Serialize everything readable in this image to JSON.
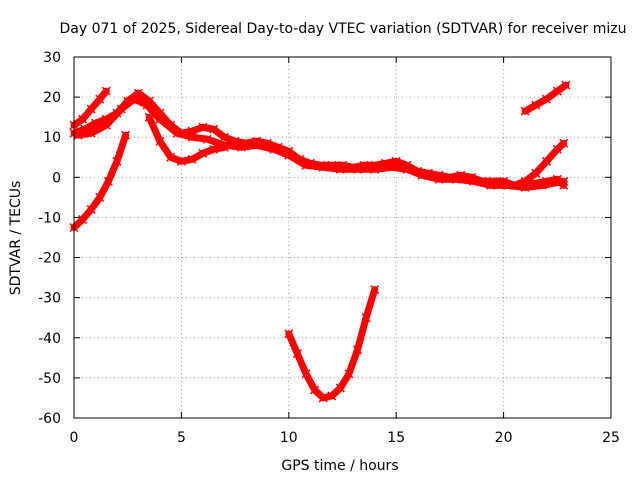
{
  "chart_data": {
    "type": "scatter",
    "title": "Day 071 of 2025, Sidereal Day-to-day VTEC variation (SDTVAR) for receiver mizu",
    "xlabel": "GPS time / hours",
    "ylabel": "SDTVAR / TECUs",
    "xlim": [
      0,
      25
    ],
    "ylim": [
      -60,
      30
    ],
    "xticks": [
      0,
      5,
      10,
      15,
      20,
      25
    ],
    "yticks": [
      -60,
      -50,
      -40,
      -30,
      -20,
      -10,
      0,
      10,
      20,
      30
    ],
    "grid": true,
    "series_color": "#ff0000",
    "grid_color": "#a0a0a0",
    "series": [
      {
        "name": "early-rise-arc",
        "points": [
          [
            0.0,
            -12.5
          ],
          [
            0.4,
            -10.5
          ],
          [
            0.8,
            -8
          ],
          [
            1.2,
            -5
          ],
          [
            1.6,
            -1
          ],
          [
            2.0,
            4
          ],
          [
            2.4,
            10.5
          ]
        ]
      },
      {
        "name": "early-short-arc",
        "points": [
          [
            0.0,
            13
          ],
          [
            0.4,
            14.5
          ],
          [
            0.8,
            17
          ],
          [
            1.2,
            19.5
          ],
          [
            1.5,
            21.5
          ]
        ]
      },
      {
        "name": "main-band-upper",
        "points": [
          [
            0.0,
            11
          ],
          [
            0.5,
            12
          ],
          [
            1.0,
            13.5
          ],
          [
            1.5,
            14.5
          ],
          [
            2.0,
            16
          ],
          [
            2.5,
            19
          ],
          [
            3.0,
            21
          ],
          [
            3.5,
            19
          ],
          [
            4.0,
            16
          ],
          [
            4.5,
            13
          ],
          [
            5.0,
            11
          ],
          [
            5.5,
            11.5
          ],
          [
            6.0,
            12.5
          ],
          [
            6.5,
            12
          ],
          [
            7.0,
            10
          ],
          [
            7.5,
            9
          ],
          [
            8.0,
            8.5
          ],
          [
            8.5,
            9
          ],
          [
            9.0,
            8.5
          ],
          [
            9.5,
            7.5
          ],
          [
            10.0,
            6.5
          ],
          [
            10.5,
            4.5
          ],
          [
            11.0,
            3.5
          ],
          [
            11.5,
            3
          ],
          [
            12.0,
            3
          ],
          [
            12.5,
            3
          ],
          [
            13.0,
            2.5
          ],
          [
            13.5,
            3
          ],
          [
            14.0,
            3
          ],
          [
            14.5,
            3.5
          ],
          [
            15.0,
            4
          ],
          [
            15.5,
            3
          ],
          [
            16.0,
            1.5
          ],
          [
            16.5,
            1
          ],
          [
            17.0,
            0.5
          ],
          [
            17.5,
            0
          ],
          [
            18.0,
            0.5
          ],
          [
            18.5,
            0
          ],
          [
            19.0,
            -1
          ],
          [
            19.5,
            -1
          ],
          [
            20.0,
            -1
          ],
          [
            20.5,
            -2
          ],
          [
            21.0,
            -2
          ],
          [
            21.5,
            -1.5
          ],
          [
            22.0,
            -1
          ],
          [
            22.5,
            -0.5
          ],
          [
            22.8,
            -2
          ]
        ]
      },
      {
        "name": "main-band-lower",
        "points": [
          [
            0.2,
            10.5
          ],
          [
            0.8,
            11
          ],
          [
            1.5,
            13
          ],
          [
            2.2,
            17
          ],
          [
            2.8,
            19.5
          ],
          [
            3.4,
            18
          ],
          [
            4.0,
            14.5
          ],
          [
            4.8,
            11
          ],
          [
            5.5,
            10
          ],
          [
            6.2,
            9.5
          ],
          [
            7.0,
            8
          ],
          [
            7.8,
            7.5
          ],
          [
            8.5,
            8
          ],
          [
            9.3,
            7
          ],
          [
            10.0,
            5.5
          ],
          [
            10.8,
            3
          ],
          [
            11.6,
            2.5
          ],
          [
            12.4,
            2
          ],
          [
            13.2,
            2
          ],
          [
            14.0,
            2
          ],
          [
            14.8,
            2.5
          ],
          [
            15.5,
            2
          ],
          [
            16.2,
            0.5
          ],
          [
            17.0,
            -0.5
          ],
          [
            17.8,
            -0.5
          ],
          [
            18.6,
            -1
          ],
          [
            19.4,
            -2
          ],
          [
            20.2,
            -2
          ],
          [
            21.0,
            -2.5
          ],
          [
            21.8,
            -2
          ],
          [
            22.8,
            -1
          ]
        ]
      },
      {
        "name": "dip-arc",
        "points": [
          [
            3.5,
            15
          ],
          [
            4.0,
            9
          ],
          [
            4.5,
            5
          ],
          [
            5.0,
            4
          ],
          [
            5.5,
            4.5
          ],
          [
            6.0,
            6
          ],
          [
            6.5,
            7
          ],
          [
            7.0,
            7.5
          ]
        ]
      },
      {
        "name": "negative-arc",
        "points": [
          [
            10.0,
            -39
          ],
          [
            10.4,
            -44
          ],
          [
            10.8,
            -49
          ],
          [
            11.2,
            -53
          ],
          [
            11.6,
            -55
          ],
          [
            12.0,
            -54.5
          ],
          [
            12.4,
            -52.5
          ],
          [
            12.8,
            -49
          ],
          [
            13.2,
            -43
          ],
          [
            13.6,
            -35
          ],
          [
            14.0,
            -28
          ]
        ]
      },
      {
        "name": "late-rise-arc",
        "points": [
          [
            20.5,
            -2
          ],
          [
            21.0,
            -1
          ],
          [
            21.5,
            1
          ],
          [
            22.0,
            4
          ],
          [
            22.5,
            7
          ],
          [
            22.8,
            8.5
          ]
        ]
      },
      {
        "name": "late-high-arc",
        "points": [
          [
            21.0,
            16.5
          ],
          [
            21.5,
            18
          ],
          [
            22.0,
            19.5
          ],
          [
            22.5,
            21.5
          ],
          [
            22.9,
            23
          ]
        ]
      }
    ]
  }
}
